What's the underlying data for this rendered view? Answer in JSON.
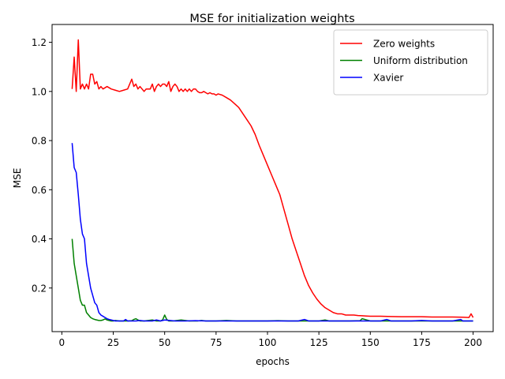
{
  "chart_data": {
    "type": "line",
    "title": "MSE for initialization weights",
    "xlabel": "epochs",
    "ylabel": "MSE",
    "xlim": [
      -4.75,
      209.75
    ],
    "ylim": [
      0.0225,
      1.2725
    ],
    "xticks": [
      0,
      25,
      50,
      75,
      100,
      125,
      150,
      175,
      200
    ],
    "yticks": [
      0.2,
      0.4,
      0.6,
      0.8,
      1.0,
      1.2
    ],
    "ytick_labels": [
      "0.2",
      "0.4",
      "0.6",
      "0.8",
      "1.0",
      "1.2"
    ],
    "grid": false,
    "legend_position": "top-right",
    "series": [
      {
        "name": "Zero weights",
        "color": "#ff0000",
        "x": [
          5,
          6,
          7,
          8,
          9,
          10,
          11,
          12,
          13,
          14,
          15,
          16,
          17,
          18,
          19,
          20,
          22,
          24,
          26,
          28,
          30,
          32,
          34,
          35,
          36,
          37,
          38,
          39,
          40,
          41,
          42,
          43,
          44,
          45,
          46,
          47,
          48,
          49,
          50,
          51,
          52,
          53,
          54,
          55,
          56,
          57,
          58,
          59,
          60,
          61,
          62,
          63,
          64,
          65,
          66,
          67,
          68,
          69,
          70,
          71,
          72,
          73,
          74,
          75,
          76,
          78,
          80,
          82,
          84,
          86,
          88,
          90,
          92,
          94,
          96,
          98,
          100,
          102,
          104,
          105,
          106,
          108,
          110,
          112,
          114,
          116,
          118,
          120,
          122,
          124,
          126,
          128,
          130,
          132,
          134,
          136,
          138,
          140,
          142,
          144,
          146,
          148,
          150,
          155,
          160,
          165,
          170,
          175,
          180,
          185,
          190,
          195,
          198,
          199,
          200
        ],
        "y": [
          1.01,
          1.14,
          1.0,
          1.21,
          1.01,
          1.03,
          1.01,
          1.03,
          1.01,
          1.07,
          1.07,
          1.03,
          1.04,
          1.01,
          1.02,
          1.01,
          1.02,
          1.01,
          1.005,
          1.0,
          1.005,
          1.01,
          1.05,
          1.02,
          1.03,
          1.01,
          1.02,
          1.01,
          1.0,
          1.01,
          1.01,
          1.01,
          1.03,
          1.0,
          1.02,
          1.03,
          1.02,
          1.03,
          1.03,
          1.02,
          1.04,
          1.0,
          1.02,
          1.03,
          1.02,
          1.0,
          1.01,
          1.0,
          1.01,
          1.0,
          1.01,
          1.0,
          1.01,
          1.01,
          1.0,
          0.995,
          0.995,
          1.0,
          0.995,
          0.99,
          0.995,
          0.99,
          0.99,
          0.985,
          0.99,
          0.985,
          0.975,
          0.965,
          0.95,
          0.935,
          0.91,
          0.885,
          0.86,
          0.825,
          0.78,
          0.74,
          0.7,
          0.66,
          0.62,
          0.6,
          0.58,
          0.52,
          0.46,
          0.4,
          0.35,
          0.3,
          0.25,
          0.21,
          0.18,
          0.155,
          0.135,
          0.12,
          0.11,
          0.1,
          0.095,
          0.095,
          0.09,
          0.09,
          0.09,
          0.088,
          0.087,
          0.086,
          0.085,
          0.085,
          0.084,
          0.083,
          0.083,
          0.083,
          0.082,
          0.082,
          0.082,
          0.081,
          0.08,
          0.095,
          0.08
        ]
      },
      {
        "name": "Uniform distribution",
        "color": "#008000",
        "x": [
          5,
          6,
          7,
          8,
          9,
          10,
          11,
          12,
          13,
          14,
          15,
          16,
          17,
          18,
          19,
          20,
          21,
          22,
          23,
          24,
          25,
          26,
          28,
          30,
          32,
          34,
          35,
          36,
          37,
          38,
          40,
          42,
          44,
          46,
          48,
          49,
          50,
          51,
          52,
          54,
          56,
          58,
          60,
          62,
          64,
          66,
          68,
          70,
          75,
          80,
          85,
          90,
          95,
          100,
          105,
          110,
          115,
          120,
          125,
          128,
          130,
          135,
          140,
          145,
          146,
          150,
          155,
          160,
          165,
          170,
          175,
          180,
          185,
          190,
          195,
          200
        ],
        "y": [
          0.4,
          0.3,
          0.25,
          0.2,
          0.15,
          0.13,
          0.13,
          0.1,
          0.09,
          0.08,
          0.075,
          0.072,
          0.07,
          0.068,
          0.068,
          0.07,
          0.074,
          0.07,
          0.068,
          0.066,
          0.066,
          0.068,
          0.066,
          0.066,
          0.066,
          0.067,
          0.072,
          0.075,
          0.07,
          0.066,
          0.066,
          0.068,
          0.07,
          0.066,
          0.066,
          0.07,
          0.09,
          0.072,
          0.066,
          0.066,
          0.068,
          0.07,
          0.068,
          0.066,
          0.066,
          0.066,
          0.068,
          0.066,
          0.066,
          0.068,
          0.066,
          0.066,
          0.066,
          0.066,
          0.067,
          0.066,
          0.066,
          0.066,
          0.066,
          0.07,
          0.066,
          0.066,
          0.066,
          0.067,
          0.075,
          0.066,
          0.066,
          0.066,
          0.066,
          0.066,
          0.066,
          0.066,
          0.066,
          0.066,
          0.066,
          0.066
        ]
      },
      {
        "name": "Xavier",
        "color": "#0000ff",
        "x": [
          5,
          6,
          7,
          8,
          9,
          10,
          11,
          12,
          13,
          14,
          15,
          16,
          17,
          18,
          19,
          20,
          21,
          22,
          23,
          24,
          25,
          26,
          28,
          30,
          31,
          32,
          34,
          36,
          38,
          40,
          42,
          44,
          46,
          48,
          50,
          55,
          60,
          65,
          70,
          75,
          80,
          85,
          90,
          95,
          100,
          105,
          110,
          115,
          118,
          120,
          125,
          130,
          135,
          140,
          145,
          150,
          155,
          158,
          160,
          165,
          170,
          175,
          180,
          185,
          190,
          194,
          195,
          200
        ],
        "y": [
          0.79,
          0.69,
          0.67,
          0.58,
          0.48,
          0.42,
          0.4,
          0.3,
          0.25,
          0.2,
          0.17,
          0.14,
          0.13,
          0.1,
          0.09,
          0.085,
          0.08,
          0.075,
          0.072,
          0.07,
          0.068,
          0.066,
          0.066,
          0.066,
          0.072,
          0.066,
          0.066,
          0.066,
          0.068,
          0.066,
          0.066,
          0.066,
          0.07,
          0.066,
          0.07,
          0.066,
          0.066,
          0.067,
          0.066,
          0.066,
          0.066,
          0.066,
          0.066,
          0.066,
          0.066,
          0.066,
          0.066,
          0.066,
          0.072,
          0.066,
          0.066,
          0.066,
          0.066,
          0.066,
          0.066,
          0.066,
          0.066,
          0.072,
          0.066,
          0.066,
          0.066,
          0.068,
          0.066,
          0.066,
          0.066,
          0.072,
          0.066,
          0.066
        ]
      }
    ]
  }
}
